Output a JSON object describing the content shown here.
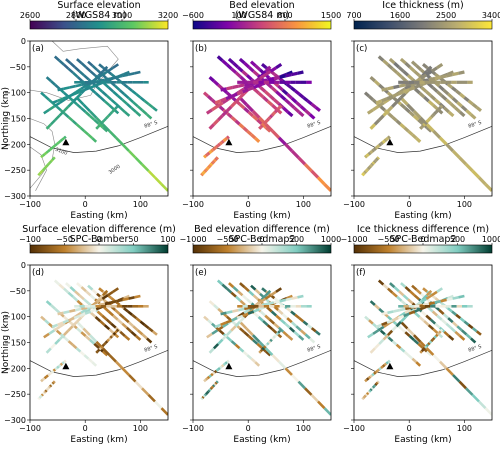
{
  "figure": {
    "panels": [
      {
        "id": "a",
        "label": "(a)",
        "title": "Surface elevation",
        "subtitle": "(WGS84 m)",
        "cbar_ticks": [
          "2600",
          "2800",
          "3000",
          "3200"
        ],
        "cmap": "viridis",
        "show_ylabel": true
      },
      {
        "id": "b",
        "label": "(b)",
        "title": "Bed elevation",
        "subtitle": "(WGS84 m)",
        "cbar_ticks": [
          "−600",
          "100",
          "800",
          "1500"
        ],
        "cmap": "plasma",
        "show_ylabel": false
      },
      {
        "id": "c",
        "label": "(c)",
        "title": "Ice thickness (m)",
        "subtitle": "",
        "cbar_ticks": [
          "700",
          "1600",
          "2500",
          "3400"
        ],
        "cmap": "cividis",
        "show_ylabel": false
      },
      {
        "id": "d",
        "label": "(d)",
        "title": "Surface elevation difference (m)",
        "subtitle": "SPC-Bamber",
        "cbar_ticks": [
          "−100",
          "−50",
          "0",
          "50",
          "100"
        ],
        "cmap": "brbg",
        "show_ylabel": true
      },
      {
        "id": "e",
        "label": "(e)",
        "title": "Bed elevation difference (m)",
        "subtitle": "SPC-Bedmap2",
        "cbar_ticks": [
          "−1000",
          "−500",
          "0",
          "500",
          "1000"
        ],
        "cmap": "brbg",
        "show_ylabel": false
      },
      {
        "id": "f",
        "label": "(f)",
        "title": "Ice thickness difference (m)",
        "subtitle": "SPC-Bedmap2",
        "cbar_ticks": [
          "−1000",
          "−500",
          "0",
          "500",
          "1000"
        ],
        "cmap": "brbg",
        "show_ylabel": false
      }
    ],
    "xlabel": "Easting (km)",
    "ylabel": "Northing (km)",
    "x_ticks": [
      "−100",
      "0",
      "100"
    ],
    "y_ticks": [
      "0",
      "−50",
      "−100",
      "−150",
      "−200",
      "−250",
      "−300"
    ],
    "contour_labels": [
      "88° S",
      "3100",
      "3000"
    ]
  },
  "colors": {
    "viridis": [
      "#440154",
      "#3b528b",
      "#21918c",
      "#5ec962",
      "#fde725"
    ],
    "plasma": [
      "#0d0887",
      "#7e03a8",
      "#cc4778",
      "#f89540",
      "#f0f921"
    ],
    "cividis": [
      "#00224e",
      "#3d4e6c",
      "#7c7b78",
      "#bcaf6f",
      "#fee838"
    ],
    "brbg": [
      "#543005",
      "#bf812d",
      "#f6f4ea",
      "#80cdc1",
      "#003c30"
    ]
  },
  "chart_data": {
    "type": "scatter",
    "xlim": [
      -100,
      150
    ],
    "ylim": [
      -300,
      0
    ],
    "station_marker": [
      -35,
      -197
    ],
    "contour_88S": [
      [
        -100,
        -185
      ],
      [
        -60,
        -207
      ],
      [
        -20,
        -216
      ],
      [
        20,
        -213
      ],
      [
        60,
        -203
      ],
      [
        100,
        -187
      ],
      [
        150,
        -165
      ]
    ],
    "flight_lines": [
      [
        [
          -55,
          -30
        ],
        [
          60,
          -140
        ]
      ],
      [
        [
          -35,
          -35
        ],
        [
          80,
          -145
        ]
      ],
      [
        [
          -15,
          -35
        ],
        [
          100,
          -145
        ]
      ],
      [
        [
          5,
          -40
        ],
        [
          120,
          -150
        ]
      ],
      [
        [
          25,
          -45
        ],
        [
          130,
          -135
        ]
      ],
      [
        [
          -70,
          -70
        ],
        [
          40,
          -175
        ]
      ],
      [
        [
          -80,
          -100
        ],
        [
          20,
          -195
        ]
      ],
      [
        [
          -15,
          -110
        ],
        [
          150,
          -290
        ]
      ],
      [
        [
          -70,
          -170
        ],
        [
          40,
          -50
        ]
      ],
      [
        [
          -75,
          -140
        ],
        [
          60,
          -45
        ]
      ],
      [
        [
          -60,
          -120
        ],
        [
          80,
          -60
        ]
      ],
      [
        [
          -50,
          -95
        ],
        [
          100,
          -60
        ]
      ],
      [
        [
          -20,
          -80
        ],
        [
          115,
          -80
        ]
      ],
      [
        [
          -80,
          -225
        ],
        [
          -35,
          -185
        ]
      ],
      [
        [
          -85,
          -260
        ],
        [
          -55,
          -225
        ]
      ],
      [
        [
          20,
          -170
        ],
        [
          60,
          -125
        ]
      ]
    ]
  }
}
